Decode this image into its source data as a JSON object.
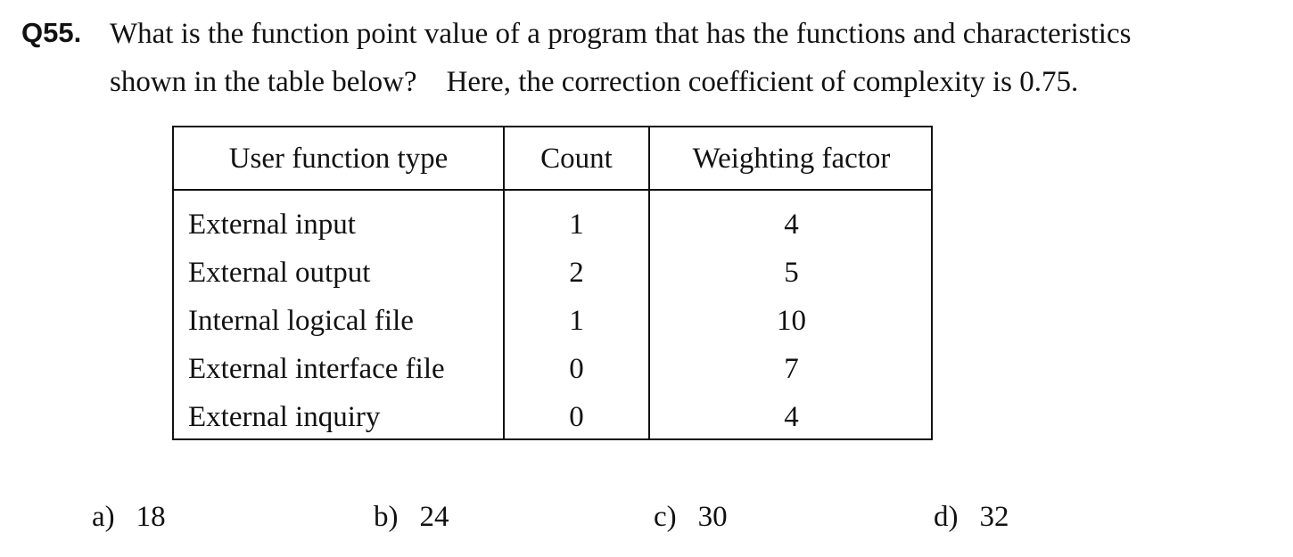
{
  "question": {
    "number": "Q55.",
    "line1": "What is the function point value of a program that has the functions and characteristics",
    "line2": "shown in the table below?    Here, the correction coefficient of complexity is 0.75."
  },
  "table": {
    "headers": [
      "User function type",
      "Count",
      "Weighting factor"
    ],
    "rows": [
      {
        "type": "External input",
        "count": "1",
        "weight": "4"
      },
      {
        "type": "External output",
        "count": "2",
        "weight": "5"
      },
      {
        "type": "Internal logical file",
        "count": "1",
        "weight": "10"
      },
      {
        "type": "External interface file",
        "count": "0",
        "weight": "7"
      },
      {
        "type": "External inquiry",
        "count": "0",
        "weight": "4"
      }
    ]
  },
  "choices": [
    {
      "letter": "a)",
      "value": "18"
    },
    {
      "letter": "b)",
      "value": "24"
    },
    {
      "letter": "c)",
      "value": "30"
    },
    {
      "letter": "d)",
      "value": "32"
    }
  ]
}
